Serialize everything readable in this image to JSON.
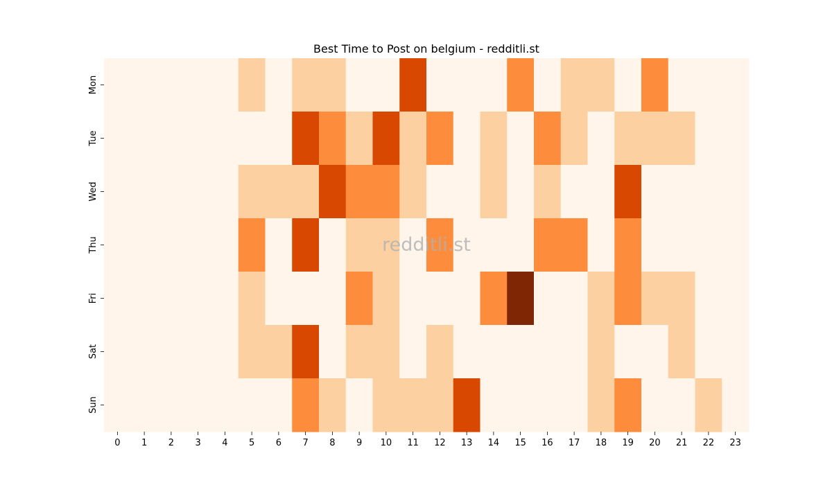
{
  "chart_data": {
    "type": "heatmap",
    "title": "Best Time to Post on belgium - redditli.st",
    "xlabel": "",
    "ylabel": "",
    "x_categories": [
      "0",
      "1",
      "2",
      "3",
      "4",
      "5",
      "6",
      "7",
      "8",
      "9",
      "10",
      "11",
      "12",
      "13",
      "14",
      "15",
      "16",
      "17",
      "18",
      "19",
      "20",
      "21",
      "22",
      "23"
    ],
    "y_categories": [
      "Mon",
      "Tue",
      "Wed",
      "Thu",
      "Fri",
      "Sat",
      "Sun"
    ],
    "values": [
      [
        0,
        0,
        0,
        0,
        0,
        1,
        0,
        1,
        1,
        0,
        0,
        3,
        0,
        0,
        0,
        2,
        0,
        1,
        1,
        0,
        2,
        0,
        0,
        0
      ],
      [
        0,
        0,
        0,
        0,
        0,
        0,
        0,
        3,
        2,
        1,
        3,
        1,
        2,
        0,
        1,
        0,
        2,
        1,
        0,
        1,
        1,
        1,
        0,
        0
      ],
      [
        0,
        0,
        0,
        0,
        0,
        1,
        1,
        1,
        3,
        2,
        2,
        1,
        0,
        0,
        1,
        0,
        1,
        0,
        0,
        3,
        0,
        0,
        0,
        0
      ],
      [
        0,
        0,
        0,
        0,
        0,
        2,
        0,
        3,
        0,
        1,
        1,
        0,
        2,
        0,
        0,
        0,
        2,
        2,
        0,
        2,
        0,
        0,
        0,
        0
      ],
      [
        0,
        0,
        0,
        0,
        0,
        1,
        0,
        0,
        0,
        2,
        1,
        0,
        0,
        0,
        2,
        4,
        0,
        0,
        1,
        2,
        1,
        1,
        0,
        0
      ],
      [
        0,
        0,
        0,
        0,
        0,
        1,
        1,
        3,
        0,
        1,
        1,
        0,
        1,
        0,
        0,
        0,
        0,
        0,
        1,
        0,
        0,
        1,
        0,
        0
      ],
      [
        0,
        0,
        0,
        0,
        0,
        0,
        0,
        2,
        1,
        0,
        1,
        1,
        1,
        3,
        0,
        0,
        0,
        0,
        1,
        2,
        0,
        0,
        1,
        0
      ]
    ],
    "colorscale": [
      "#fff5eb",
      "#fdd0a2",
      "#fd8d3c",
      "#d94801",
      "#7f2704"
    ],
    "colorbar": false,
    "watermark": "redditli.st"
  }
}
